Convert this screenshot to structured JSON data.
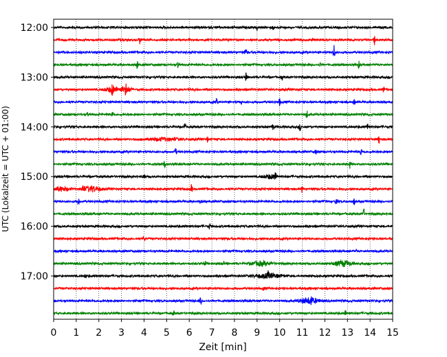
{
  "chart_data": {
    "type": "line",
    "title": "",
    "xlabel": "Zeit  [min]",
    "ylabel": "UTC (Lokalzeit = UTC + 01:00)",
    "xlim": [
      0,
      15
    ],
    "x_ticks": [
      "0",
      "1",
      "2",
      "3",
      "4",
      "5",
      "6",
      "7",
      "8",
      "9",
      "10",
      "11",
      "12",
      "13",
      "14",
      "15"
    ],
    "y_tick_labels": [
      "12:00",
      "13:00",
      "14:00",
      "15:00",
      "16:00",
      "17:00"
    ],
    "grid": "vertical dotted at each minute",
    "colors": {
      "black": "#000000",
      "red": "#ff0000",
      "blue": "#0000ff",
      "green": "#008000"
    },
    "rows_per_hour": 4,
    "series": [
      {
        "start": "12:00",
        "color": "black",
        "spikes": [
          [
            9.0,
            4
          ],
          [
            9.7,
            3
          ]
        ]
      },
      {
        "start": "12:15",
        "color": "red",
        "spikes": [
          [
            3.8,
            7
          ],
          [
            14.2,
            7
          ]
        ]
      },
      {
        "start": "12:30",
        "color": "blue",
        "spikes": [
          [
            8.5,
            5
          ],
          [
            12.4,
            12
          ]
        ]
      },
      {
        "start": "12:45",
        "color": "green",
        "spikes": [
          [
            3.7,
            6
          ],
          [
            5.5,
            5
          ],
          [
            11.8,
            3
          ],
          [
            13.5,
            5
          ]
        ]
      },
      {
        "start": "13:00",
        "color": "black",
        "spikes": [
          [
            8.5,
            6
          ],
          [
            10.1,
            3
          ]
        ]
      },
      {
        "start": "13:15",
        "color": "red",
        "spikes": [
          [
            2.6,
            6
          ],
          [
            3.2,
            6
          ],
          [
            14.6,
            5
          ]
        ],
        "bursts": [
          [
            2.6,
            0.5,
            4
          ],
          [
            3.2,
            0.4,
            4
          ]
        ]
      },
      {
        "start": "13:30",
        "color": "blue",
        "spikes": [
          [
            7.2,
            5
          ],
          [
            8.3,
            3
          ],
          [
            10.0,
            5
          ],
          [
            13.3,
            4
          ]
        ]
      },
      {
        "start": "13:45",
        "color": "green",
        "spikes": [
          [
            1.5,
            3
          ],
          [
            2.6,
            4
          ],
          [
            11.2,
            6
          ]
        ]
      },
      {
        "start": "14:00",
        "color": "black",
        "spikes": [
          [
            5.8,
            6
          ],
          [
            9.7,
            4
          ],
          [
            10.9,
            5
          ],
          [
            13.9,
            8
          ]
        ]
      },
      {
        "start": "14:15",
        "color": "red",
        "spikes": [
          [
            6.8,
            4
          ],
          [
            14.4,
            7
          ]
        ],
        "bursts": [
          [
            4.8,
            1.2,
            2
          ]
        ]
      },
      {
        "start": "14:30",
        "color": "blue",
        "spikes": [
          [
            5.4,
            5
          ],
          [
            11.6,
            3
          ],
          [
            13.6,
            6
          ]
        ]
      },
      {
        "start": "14:45",
        "color": "green",
        "spikes": [
          [
            4.9,
            6
          ],
          [
            13.1,
            6
          ]
        ]
      },
      {
        "start": "15:00",
        "color": "black",
        "spikes": [
          [
            4.0,
            6
          ],
          [
            9.8,
            6
          ]
        ],
        "bursts": [
          [
            9.6,
            0.5,
            3
          ]
        ]
      },
      {
        "start": "15:15",
        "color": "red",
        "spikes": [
          [
            1.3,
            5
          ],
          [
            6.1,
            6
          ],
          [
            11.0,
            6
          ]
        ],
        "bursts": [
          [
            0.3,
            0.6,
            3
          ],
          [
            1.7,
            0.6,
            4
          ]
        ]
      },
      {
        "start": "15:30",
        "color": "blue",
        "spikes": [
          [
            1.1,
            6
          ],
          [
            6.5,
            3
          ],
          [
            12.5,
            5
          ],
          [
            13.3,
            5
          ]
        ]
      },
      {
        "start": "15:45",
        "color": "green",
        "spikes": [
          [
            13.7,
            12
          ]
        ]
      },
      {
        "start": "16:00",
        "color": "black",
        "spikes": [
          [
            6.9,
            4
          ]
        ]
      },
      {
        "start": "16:15",
        "color": "red",
        "spikes": [
          [
            4.0,
            4
          ]
        ]
      },
      {
        "start": "16:30",
        "color": "blue",
        "spikes": [
          [
            13.4,
            2
          ]
        ]
      },
      {
        "start": "16:45",
        "color": "green",
        "spikes": [
          [
            6.7,
            4
          ],
          [
            7.5,
            5
          ]
        ],
        "bursts": [
          [
            9.2,
            0.7,
            3
          ],
          [
            12.8,
            0.6,
            4
          ]
        ]
      },
      {
        "start": "17:00",
        "color": "black",
        "spikes": [
          [
            1.4,
            3
          ],
          [
            9.5,
            4
          ]
        ],
        "bursts": [
          [
            9.5,
            1.0,
            3
          ]
        ]
      },
      {
        "start": "17:15",
        "color": "red",
        "spikes": [
          [
            9.3,
            3
          ]
        ]
      },
      {
        "start": "17:30",
        "color": "blue",
        "spikes": [
          [
            6.5,
            5
          ],
          [
            11.4,
            4
          ]
        ],
        "bursts": [
          [
            11.3,
            0.7,
            4
          ]
        ]
      },
      {
        "start": "17:45",
        "color": "green",
        "spikes": [
          [
            5.3,
            3
          ],
          [
            12.9,
            5
          ]
        ]
      }
    ]
  }
}
